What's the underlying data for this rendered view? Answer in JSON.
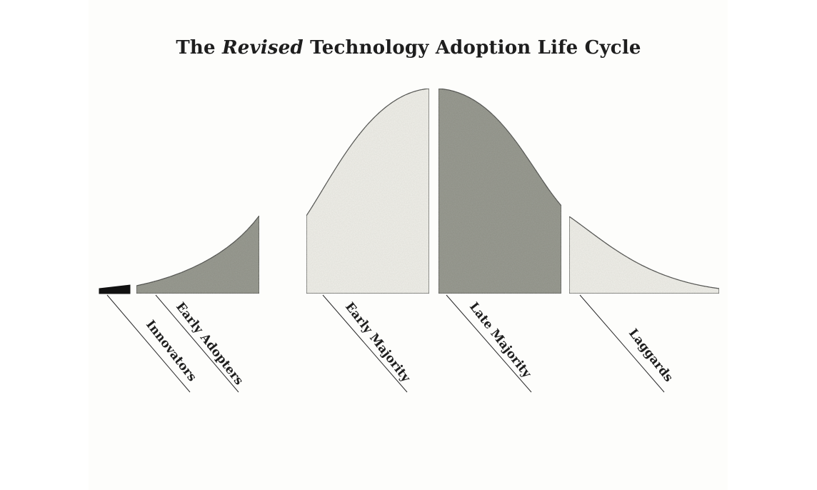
{
  "title": {
    "prefix": "The ",
    "emphasis": "Revised",
    "suffix": " Technology Adoption Life Cycle"
  },
  "segments": [
    {
      "label": "Innovators",
      "shade": "dark"
    },
    {
      "label": "Early Adopters",
      "shade": "gray"
    },
    {
      "label": "Early Majority",
      "shade": "light"
    },
    {
      "label": "Late Majority",
      "shade": "gray"
    },
    {
      "label": "Laggards",
      "shade": "light"
    }
  ],
  "colors": {
    "dark": "#111111",
    "gray": "#8c8e84",
    "light": "#f1f0ea",
    "outline": "#2a2a2a",
    "text": "#1e1e1e"
  }
}
